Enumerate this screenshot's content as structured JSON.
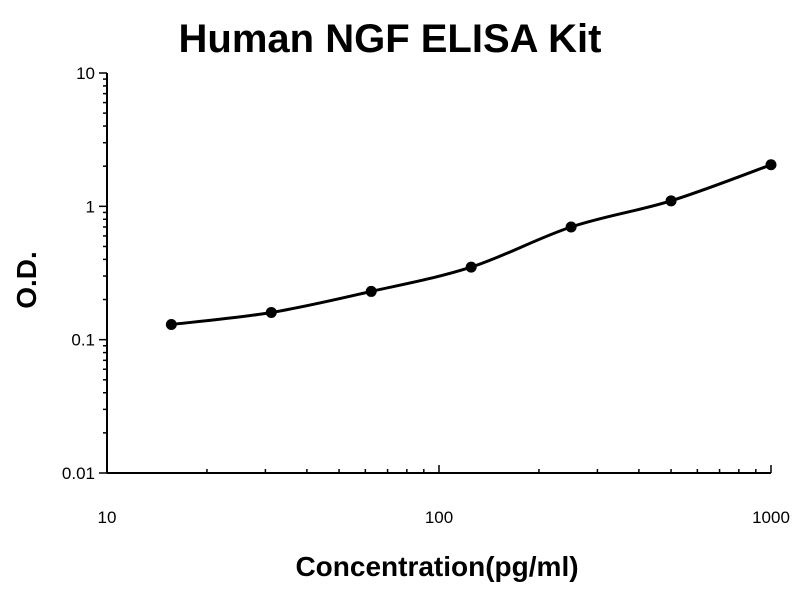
{
  "chart_data": {
    "type": "scatter",
    "title": "Human NGF ELISA Kit",
    "xlabel": "Concentration(pg/ml)",
    "ylabel": "O.D.",
    "xscale": "log",
    "yscale": "log",
    "xlim": [
      10,
      1000
    ],
    "ylim": [
      0.01,
      10
    ],
    "x_ticks": [
      10,
      100,
      1000
    ],
    "x_tick_labels": [
      "10",
      "100",
      "1000"
    ],
    "y_ticks": [
      0.01,
      0.1,
      1,
      10
    ],
    "y_tick_labels": [
      "0.01",
      "0.1",
      "1",
      "10"
    ],
    "grid": false,
    "legend": "none",
    "points": [
      {
        "x": 15.625,
        "y": 0.13
      },
      {
        "x": 31.25,
        "y": 0.16
      },
      {
        "x": 62.5,
        "y": 0.23
      },
      {
        "x": 125,
        "y": 0.35
      },
      {
        "x": 250,
        "y": 0.7
      },
      {
        "x": 500,
        "y": 1.1
      },
      {
        "x": 1000,
        "y": 2.05
      }
    ],
    "fit_line": true,
    "colors": {
      "marker": "#000000",
      "line": "#000000"
    }
  }
}
